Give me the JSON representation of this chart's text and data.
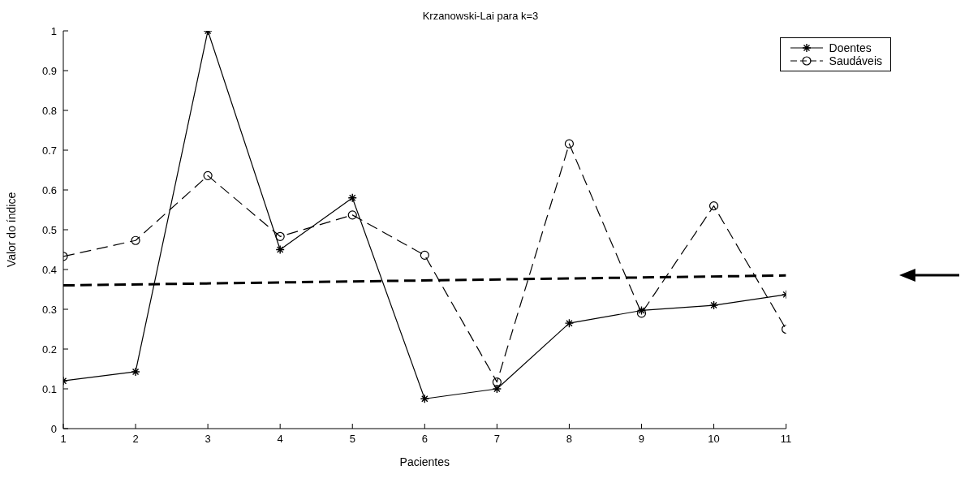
{
  "chart_data": {
    "type": "line",
    "title": "Krzanowski-Lai para k=3",
    "xlabel": "Pacientes",
    "ylabel": "Valor do índice",
    "x": [
      1,
      2,
      3,
      4,
      5,
      6,
      7,
      8,
      9,
      10,
      11
    ],
    "xlim": [
      1,
      11
    ],
    "xticks": [
      1,
      2,
      3,
      4,
      5,
      6,
      7,
      8,
      9,
      10,
      11
    ],
    "ylim": [
      0,
      1
    ],
    "yticks": [
      0,
      0.1,
      0.2,
      0.3,
      0.4,
      0.5,
      0.6,
      0.7,
      0.8,
      0.9,
      1
    ],
    "legend": "top right",
    "series": [
      {
        "name": "Doentes",
        "color": "#000000",
        "marker": "cross",
        "line_style": "solid",
        "values": [
          0.12,
          0.143,
          1.0,
          0.45,
          0.58,
          0.075,
          0.1,
          0.265,
          0.297,
          0.31,
          0.337
        ]
      },
      {
        "name": "Saudáveis",
        "color": "#000000",
        "marker": "circle",
        "line_style": "dashed",
        "values": [
          0.433,
          0.473,
          0.636,
          0.483,
          0.537,
          0.436,
          0.117,
          0.716,
          0.29,
          0.56,
          0.25
        ]
      },
      {
        "type": "line",
        "color": "#000000",
        "marker": "none",
        "line_style": "dashed",
        "x": [
          1,
          11
        ],
        "values": [
          0.36,
          0.385
        ]
      }
    ]
  }
}
